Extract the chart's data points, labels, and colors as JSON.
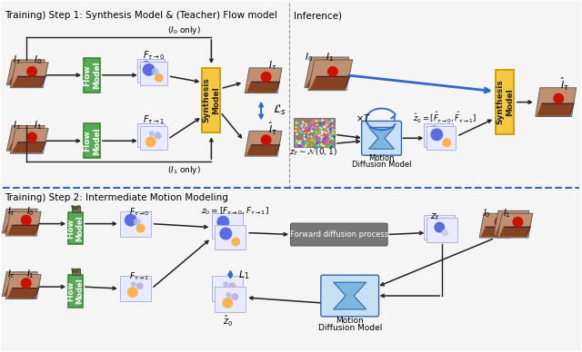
{
  "title_top_left": "Training) Step 1: Synthesis Model & (Teacher) Flow model",
  "title_top_right": "Inference)",
  "title_bottom": "Training) Step 2: Intermediate Motion Modeling",
  "green_color": "#5aaa5a",
  "yellow_color": "#f5c842",
  "gray_dark": "#666666",
  "blue_arrow": "#3366cc",
  "hourglass_fill": "#7ab0d8",
  "hourglass_edge": "#3366aa",
  "flow_bg": "#eeeeff",
  "img_bg": "#c0956a"
}
